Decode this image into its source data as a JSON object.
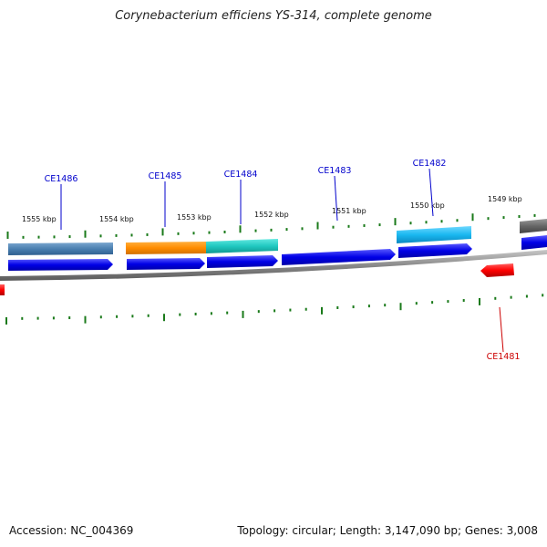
{
  "title": "Corynebacterium efficiens YS-314, complete genome",
  "footer": {
    "accession": "Accession: NC_004369",
    "topology": "Topology: circular; Length: 3,147,090 bp; Genes: 3,008"
  },
  "ruler_labels": [
    "1555 kbp",
    "1554 kbp",
    "1553 kbp",
    "1552 kbp",
    "1551 kbp",
    "1550 kbp",
    "1549 kbp"
  ],
  "gene_labels": [
    {
      "name": "CE1486",
      "color": "#0000cc"
    },
    {
      "name": "CE1485",
      "color": "#0000cc"
    },
    {
      "name": "CE1484",
      "color": "#0000cc"
    },
    {
      "name": "CE1483",
      "color": "#0000cc"
    },
    {
      "name": "CE1482",
      "color": "#0000cc"
    },
    {
      "name": "CE1481",
      "color": "#cc0000"
    }
  ],
  "colors": {
    "forward_cds": "#0000ee",
    "reverse_cds": "#ff0000",
    "tick": "#1a7a1a",
    "backbone": "#888888",
    "feature_steelblue": "#4a7fb0",
    "feature_orange": "#ff8c00",
    "feature_turquoise": "#20c8c0",
    "feature_deepskyblue": "#1ab8f0",
    "feature_gray": "#666666"
  }
}
